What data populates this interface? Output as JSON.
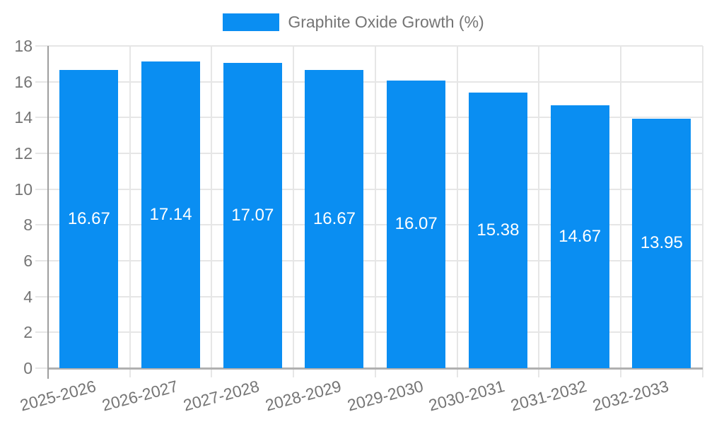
{
  "chart_data": {
    "type": "bar",
    "title": "",
    "legend": "Graphite Oxide Growth (%)",
    "legend_position": "top",
    "categories": [
      "2025-2026",
      "2026-2027",
      "2027-2028",
      "2028-2029",
      "2029-2030",
      "2030-2031",
      "2031-2032",
      "2032-2033"
    ],
    "series": [
      {
        "name": "Graphite Oxide Growth (%)",
        "values": [
          16.67,
          17.14,
          17.07,
          16.67,
          16.07,
          15.38,
          14.67,
          13.95
        ]
      }
    ],
    "value_labels": [
      "16.67",
      "17.14",
      "17.07",
      "16.67",
      "16.07",
      "15.38",
      "14.67",
      "13.95"
    ],
    "ylim": [
      0,
      18
    ],
    "y_ticks": [
      0,
      2,
      4,
      6,
      8,
      10,
      12,
      14,
      16,
      18
    ],
    "grid": true,
    "colors": {
      "bar": "#0a8ef2",
      "bar_label": "#ffffff",
      "axis_text": "#757575",
      "grid": "#e6e6e6",
      "baseline": "#b0b0b0",
      "axis_line": "#9e9e9e"
    }
  }
}
